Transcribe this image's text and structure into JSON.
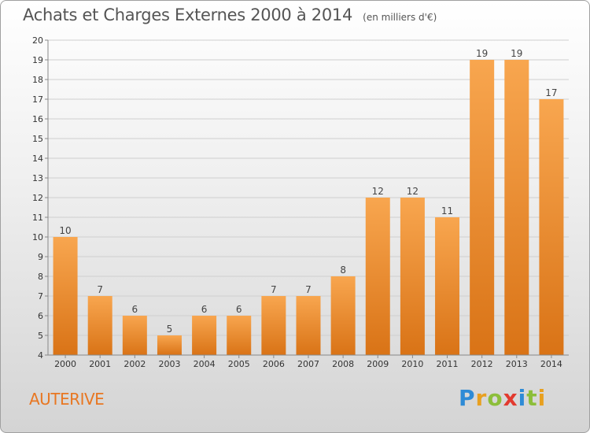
{
  "header": {
    "title": "Achats et Charges Externes 2000 à 2014",
    "subtitle": "(en milliers d'€)"
  },
  "footer": {
    "commune": "AUTERIVE",
    "brand": "Proxiti",
    "brand_letters": [
      {
        "ch": "P",
        "color": "#2e8bd6"
      },
      {
        "ch": "r",
        "color": "#e8a020"
      },
      {
        "ch": "o",
        "color": "#8cbe3a"
      },
      {
        "ch": "x",
        "color": "#e23a2f"
      },
      {
        "ch": "i",
        "color": "#2e8bd6"
      },
      {
        "ch": "t",
        "color": "#8cbe3a"
      },
      {
        "ch": "i",
        "color": "#e8a020"
      }
    ]
  },
  "colors": {
    "bar_light": "#f8a64f",
    "bar_dark": "#d97316",
    "grid": "#cfcfcf",
    "axis_text": "#333333"
  },
  "chart_data": {
    "type": "bar",
    "title": "Achats et Charges Externes 2000 à 2014",
    "subtitle": "(en milliers d'€)",
    "categories": [
      "2000",
      "2001",
      "2002",
      "2003",
      "2004",
      "2005",
      "2006",
      "2007",
      "2008",
      "2009",
      "2010",
      "2011",
      "2012",
      "2013",
      "2014"
    ],
    "values": [
      10,
      7,
      6,
      5,
      6,
      6,
      7,
      7,
      8,
      12,
      12,
      11,
      19,
      19,
      17
    ],
    "ylim": [
      4,
      20
    ],
    "yticks": [
      4,
      5,
      6,
      7,
      8,
      9,
      10,
      11,
      12,
      13,
      14,
      15,
      16,
      17,
      18,
      19,
      20
    ],
    "grid": true,
    "xlabel": "",
    "ylabel": ""
  }
}
